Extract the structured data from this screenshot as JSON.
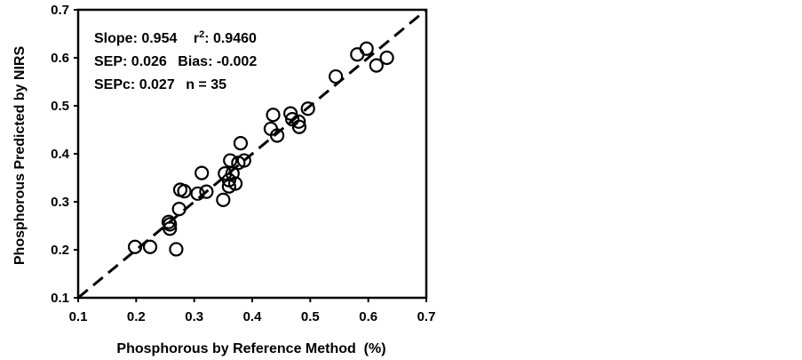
{
  "chart_data": {
    "type": "scatter",
    "title": "",
    "xlabel": "Phosphorous by Reference Method  (%)",
    "ylabel": "Phosphorous Predicted by NIRS",
    "xlim": [
      0.1,
      0.7
    ],
    "ylim": [
      0.1,
      0.7
    ],
    "xticks": [
      "0.1",
      "0.2",
      "0.3",
      "0.4",
      "0.5",
      "0.6",
      "0.7"
    ],
    "yticks": [
      "0.1",
      "0.2",
      "0.3",
      "0.4",
      "0.5",
      "0.6",
      "0.7"
    ],
    "grid": false,
    "legend": "none",
    "reference_line": {
      "style": "dashed",
      "from": [
        0.1,
        0.1
      ],
      "to": [
        0.7,
        0.7
      ]
    },
    "annotations": {
      "slope": "Slope: 0.954",
      "r2_prefix": "r",
      "r2_sup": "2",
      "r2_value": ": 0.9460",
      "sep": "SEP: 0.026",
      "bias": "Bias: -0.002",
      "sepc": "SEPc: 0.027",
      "n": "n = 35"
    },
    "x": [
      0.198,
      0.224,
      0.256,
      0.258,
      0.258,
      0.269,
      0.274,
      0.276,
      0.283,
      0.306,
      0.313,
      0.321,
      0.35,
      0.353,
      0.36,
      0.36,
      0.362,
      0.366,
      0.371,
      0.376,
      0.38,
      0.386,
      0.432,
      0.436,
      0.443,
      0.466,
      0.469,
      0.48,
      0.481,
      0.496,
      0.544,
      0.581,
      0.597,
      0.614,
      0.632
    ],
    "y": [
      0.206,
      0.206,
      0.258,
      0.253,
      0.244,
      0.201,
      0.285,
      0.325,
      0.322,
      0.317,
      0.36,
      0.321,
      0.304,
      0.359,
      0.345,
      0.332,
      0.386,
      0.359,
      0.338,
      0.381,
      0.422,
      0.386,
      0.452,
      0.481,
      0.438,
      0.484,
      0.472,
      0.467,
      0.456,
      0.494,
      0.561,
      0.607,
      0.619,
      0.584,
      0.6
    ]
  },
  "colors": {
    "axis": "#000000",
    "marker_stroke": "#000000",
    "background": "#ffffff"
  }
}
